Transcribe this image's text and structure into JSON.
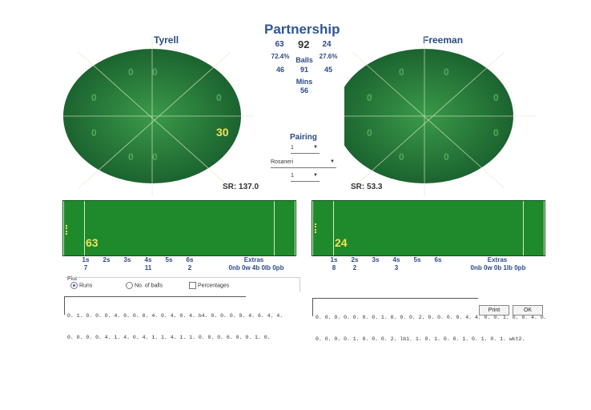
{
  "title": "Partnership",
  "left": {
    "name": "Tyrell",
    "runs": "63",
    "pct": "72.4%",
    "balls": "46",
    "sr_label": "SR:",
    "sr": "137.0",
    "zones": [
      "0",
      "0",
      "0",
      "0",
      "0",
      "0",
      "0",
      "30"
    ],
    "score_big": "63",
    "scoring": {
      "labels": [
        "1s",
        "2s",
        "3s",
        "4s",
        "5s",
        "6s"
      ],
      "values": [
        "7",
        "",
        "",
        "11",
        "",
        "2"
      ]
    },
    "extras_label": "Extras",
    "extras": "0nb 0w 4b 0lb 0pb",
    "log_line1": "0. 1. 0. 0. 0. 4. 0. 0. 0. 4. 0. 4. 0. 4. b4. 0. 0. 0. 0. 4. 6. 4. 4.",
    "log_line2": "0. 0. 0. 0. 4. 1. 4. 0. 4. 1. 1. 4. 1. 1. 0. 0. 0. 6. 0. 0. 1. 0."
  },
  "right": {
    "name": "Freeman",
    "runs": "24",
    "pct": "27.6%",
    "balls": "45",
    "sr_label": "SR:",
    "sr": "53.3",
    "zones": [
      "0",
      "0",
      "0",
      "0",
      "0",
      "0",
      "0",
      "0"
    ],
    "score_big": "24",
    "scoring": {
      "labels": [
        "1s",
        "2s",
        "3s",
        "4s",
        "5s",
        "6s"
      ],
      "values": [
        "8",
        "2",
        "",
        "3",
        "",
        ""
      ]
    },
    "extras_label": "Extras",
    "extras": "0nb 0w 0b 1lb 0pb",
    "log_line1": "0. 0. 0. 0. 0. 0. 0. 1. 0. 0. 0. 2. 0. 0. 0. 0. 4. 4. 0. 0. 1. 0. 0. 4. 0.",
    "log_line2": "0. 0. 0. 0. 1. 0. 0. 0. 2. lb1. 1. 0. 1. 0. 0. 1. 0. 1. 0. 1. wkt2."
  },
  "center": {
    "total": "92",
    "total_label": "Balls",
    "total_balls": "91",
    "mins_label": "Mins",
    "mins": "56",
    "pairing_label": "Pairing",
    "pairing_value": "1",
    "bowler": "Rosaneri",
    "bowler_value": "1"
  },
  "plot": {
    "label": "Plot",
    "runs": "Runs",
    "balls": "No. of balls",
    "percentages": "Percentages"
  },
  "buttons": {
    "print": "Print",
    "ok": "OK"
  }
}
